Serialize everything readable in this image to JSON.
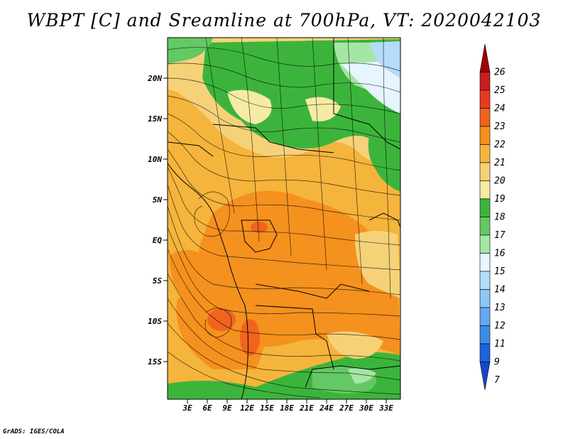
{
  "title": "WBPT [C] and Sreamline at 700hPa, VT: 2020042103",
  "footer": "GrADS: IGES/COLA",
  "map": {
    "lat_labels": [
      "20N",
      "15N",
      "10N",
      "5N",
      "EQ",
      "5S",
      "10S",
      "15S"
    ],
    "lon_labels": [
      "3E",
      "6E",
      "9E",
      "12E",
      "15E",
      "18E",
      "21E",
      "24E",
      "27E",
      "30E",
      "33E"
    ]
  },
  "colorbar": {
    "labels": [
      "26",
      "25",
      "24",
      "23",
      "22",
      "21",
      "20",
      "19",
      "18",
      "17",
      "16",
      "15",
      "14",
      "13",
      "12",
      "11",
      "9",
      "7"
    ],
    "colors": [
      "#a00000",
      "#c81e1e",
      "#e63c1e",
      "#f0641e",
      "#f5911e",
      "#f5b43c",
      "#f5d278",
      "#f5eba5",
      "#3cb43c",
      "#64c864",
      "#a5e6a5",
      "#e6f5ff",
      "#b4dcfa",
      "#8cc8f5",
      "#64aaf0",
      "#3c8ce6",
      "#1e64dc",
      "#1446c8"
    ]
  }
}
